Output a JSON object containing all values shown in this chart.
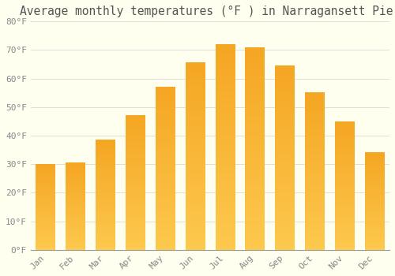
{
  "title": "Average monthly temperatures (°F ) in Narragansett Pier",
  "months": [
    "Jan",
    "Feb",
    "Mar",
    "Apr",
    "May",
    "Jun",
    "Jul",
    "Aug",
    "Sep",
    "Oct",
    "Nov",
    "Dec"
  ],
  "values": [
    30,
    30.5,
    38.5,
    47,
    57,
    65.5,
    72,
    71,
    64.5,
    55,
    45,
    34
  ],
  "bar_color": "#F5A623",
  "bar_color_light": "#FDC94E",
  "background_color": "#FFFFF0",
  "grid_color": "#DDDDDD",
  "text_color": "#888888",
  "title_color": "#555555",
  "ylim": [
    0,
    80
  ],
  "ytick_step": 10,
  "figsize": [
    5.0,
    3.5
  ],
  "dpi": 100,
  "title_fontsize": 10.5,
  "tick_fontsize": 8,
  "font_family": "monospace"
}
